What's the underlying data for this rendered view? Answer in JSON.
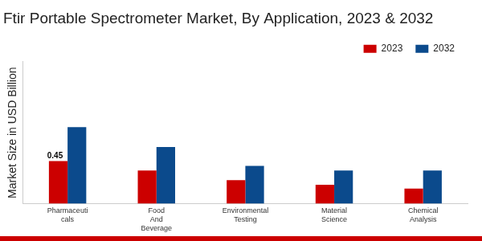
{
  "chart_data": {
    "type": "bar",
    "title": "Ftir Portable Spectrometer Market, By Application, 2023 & 2032",
    "y_label": "Market Size in USD Billion",
    "categories": [
      "Pharmaceuti\ncals",
      "Food\nAnd\nBeverage",
      "Environmental\nTesting",
      "Material\nScience",
      "Chemical\nAnalysis"
    ],
    "series": [
      {
        "name": "2023",
        "color": "#cc0000",
        "values": [
          0.45,
          0.35,
          0.25,
          0.2,
          0.16
        ],
        "value_labels": [
          "0.45",
          null,
          null,
          null,
          null
        ]
      },
      {
        "name": "2032",
        "color": "#0b4a8c",
        "values": [
          0.81,
          0.6,
          0.4,
          0.35,
          0.35
        ]
      }
    ],
    "ylim": [
      0,
      1.5
    ],
    "grid": false,
    "legend": "top-right",
    "tick_labels": "x"
  }
}
